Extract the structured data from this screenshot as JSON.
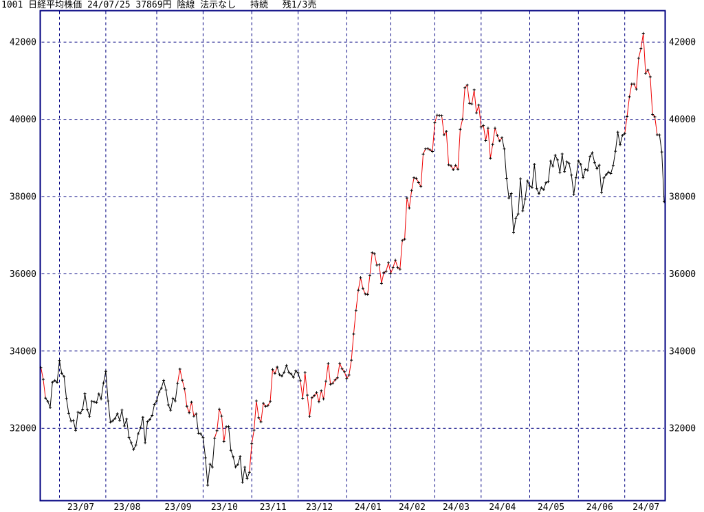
{
  "header": {
    "display": "1001 日経平均株価 24/07/25 37869円 陰線 法示なし　 持続　 残1/3売",
    "code": "1001",
    "name": "日経平均株価",
    "date": "24/07/25",
    "close": "37869円",
    "candle": "陰線",
    "mode": "法示なし",
    "signal": "持続",
    "position": "残1/3売"
  },
  "chart_data": {
    "type": "line",
    "title": "日経平均株価 daily close",
    "xlabel": "",
    "ylabel": "",
    "y_ticks": [
      42000,
      40000,
      38000,
      36000,
      34000,
      32000
    ],
    "ylim": [
      30100,
      42810
    ],
    "grid": true,
    "legend": "none",
    "x_labels": [
      "23/07",
      "23/08",
      "23/09",
      "23/10",
      "23/11",
      "23/12",
      "24/01",
      "24/02",
      "24/03",
      "24/04",
      "24/05",
      "24/06",
      "24/07"
    ],
    "month_start_index": [
      8,
      28,
      50,
      70,
      91,
      111,
      132,
      151,
      170,
      190,
      211,
      232,
      252
    ],
    "closes": [
      33575,
      33265,
      32782,
      32698,
      32538,
      33194,
      33234,
      33189,
      33753,
      33422,
      33339,
      32773,
      32388,
      32189,
      32203,
      31944,
      32419,
      32391,
      32493,
      32896,
      32490,
      32304,
      32700,
      32683,
      32668,
      32891,
      32759,
      33172,
      33477,
      32707,
      32159,
      32193,
      32254,
      32377,
      32204,
      32473,
      32059,
      32239,
      31766,
      31626,
      31451,
      31566,
      31857,
      32010,
      32287,
      31624,
      32170,
      32227,
      32333,
      32619,
      32711,
      32939,
      33037,
      33241,
      32991,
      32607,
      32467,
      32776,
      32707,
      33168,
      33533,
      33243,
      33024,
      32571,
      32402,
      32678,
      32315,
      32371,
      31872,
      31858,
      31760,
      31237,
      30527,
      31075,
      30995,
      31746,
      31936,
      32494,
      32316,
      31659,
      32040,
      32042,
      31430,
      31259,
      30999,
      31062,
      31270,
      30602,
      30992,
      30697,
      30859,
      31602,
      31950,
      32708,
      32272,
      32166,
      32646,
      32568,
      32585,
      32696,
      33519,
      33424,
      33585,
      33388,
      33354,
      33452,
      33626,
      33448,
      33408,
      33321,
      33487,
      33432,
      33231,
      32776,
      33445,
      32858,
      32308,
      32792,
      32843,
      32926,
      32686,
      32971,
      32759,
      33219,
      33676,
      33140,
      33169,
      33254,
      33306,
      33681,
      33540,
      33464,
      33288,
      33377,
      33763,
      34441,
      35050,
      35577,
      35901,
      35619,
      35477,
      35466,
      35963,
      36547,
      36518,
      36226,
      36236,
      35751,
      36026,
      36066,
      36287,
      36011,
      36158,
      36354,
      36161,
      36120,
      36863,
      36897,
      37963,
      37703,
      38157,
      38487,
      38470,
      38364,
      38262,
      39099,
      39234,
      39240,
      39208,
      39166,
      39911,
      40109,
      40098,
      40091,
      39599,
      39689,
      38820,
      38798,
      38696,
      38808,
      38708,
      39740,
      40004,
      40815,
      40888,
      40414,
      40398,
      40763,
      40168,
      40369,
      39803,
      39839,
      39451,
      39773,
      38992,
      39347,
      39773,
      39581,
      39442,
      39524,
      39232,
      38472,
      37962,
      38080,
      37068,
      37439,
      37552,
      38460,
      37628,
      37935,
      38406,
      38274,
      38236,
      38835,
      38202,
      38074,
      38229,
      38180,
      38357,
      38386,
      38920,
      38787,
      39069,
      38947,
      38617,
      39103,
      38646,
      38900,
      38855,
      38557,
      38054,
      38488,
      38923,
      38837,
      38490,
      38703,
      38684,
      39038,
      39135,
      38876,
      38721,
      38814,
      38103,
      38482,
      38570,
      38633,
      38596,
      38805,
      39173,
      39667,
      39341,
      39583,
      39631,
      40075,
      40581,
      40914,
      40912,
      40781,
      41581,
      41832,
      42224,
      41191,
      41275,
      41098,
      40127,
      40064,
      39599,
      39595,
      39155,
      37869
    ],
    "red_runs": [
      [
        0,
        2
      ],
      [
        59,
        67
      ],
      [
        75,
        80
      ],
      [
        90,
        102
      ],
      [
        112,
        199
      ],
      [
        252,
        267
      ]
    ],
    "last_point": {
      "date": "24/07/25",
      "value": 37869
    },
    "colors": {
      "background": "#ffffff",
      "grid_and_border": "#000080",
      "trend_red": "#ee0000",
      "trend_black": "#000000",
      "marker": "#000000",
      "text": "#000000"
    }
  }
}
